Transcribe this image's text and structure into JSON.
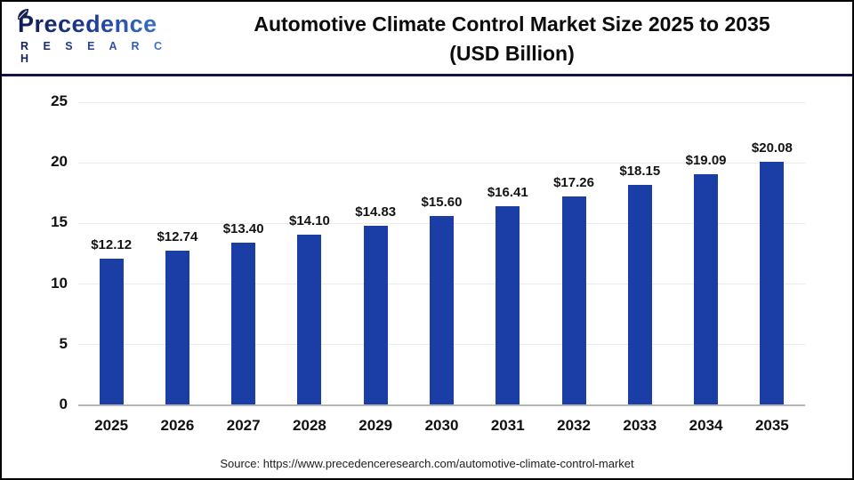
{
  "header": {
    "logo_line1": "Precedence",
    "logo_line2": "R E S E A R C H",
    "title_line1": "Automotive Climate Control Market Size 2025 to 2035",
    "title_line2": "(USD Billion)"
  },
  "chart_data": {
    "type": "bar",
    "title": "Automotive Climate Control Market Size 2025 to 2035 (USD Billion)",
    "categories": [
      "2025",
      "2026",
      "2027",
      "2028",
      "2029",
      "2030",
      "2031",
      "2032",
      "2033",
      "2034",
      "2035"
    ],
    "values": [
      12.12,
      12.74,
      13.4,
      14.1,
      14.83,
      15.6,
      16.41,
      17.26,
      18.15,
      19.09,
      20.08
    ],
    "labels": [
      "$12.12",
      "$12.74",
      "$13.40",
      "$14.10",
      "$14.83",
      "$15.60",
      "$16.41",
      "$17.26",
      "$18.15",
      "$19.09",
      "$20.08"
    ],
    "xlabel": "",
    "ylabel": "",
    "ylim": [
      0,
      25
    ],
    "yticks": [
      0,
      5,
      10,
      15,
      20,
      25
    ],
    "grid": true,
    "legend": "none",
    "bar_color": "#1b3da6",
    "grid_color": "#ebebeb",
    "axis_color": "#b7b7b7",
    "header_rule_color": "#131347"
  },
  "footer": {
    "source": "Source: https://www.precedenceresearch.com/automotive-climate-control-market"
  }
}
